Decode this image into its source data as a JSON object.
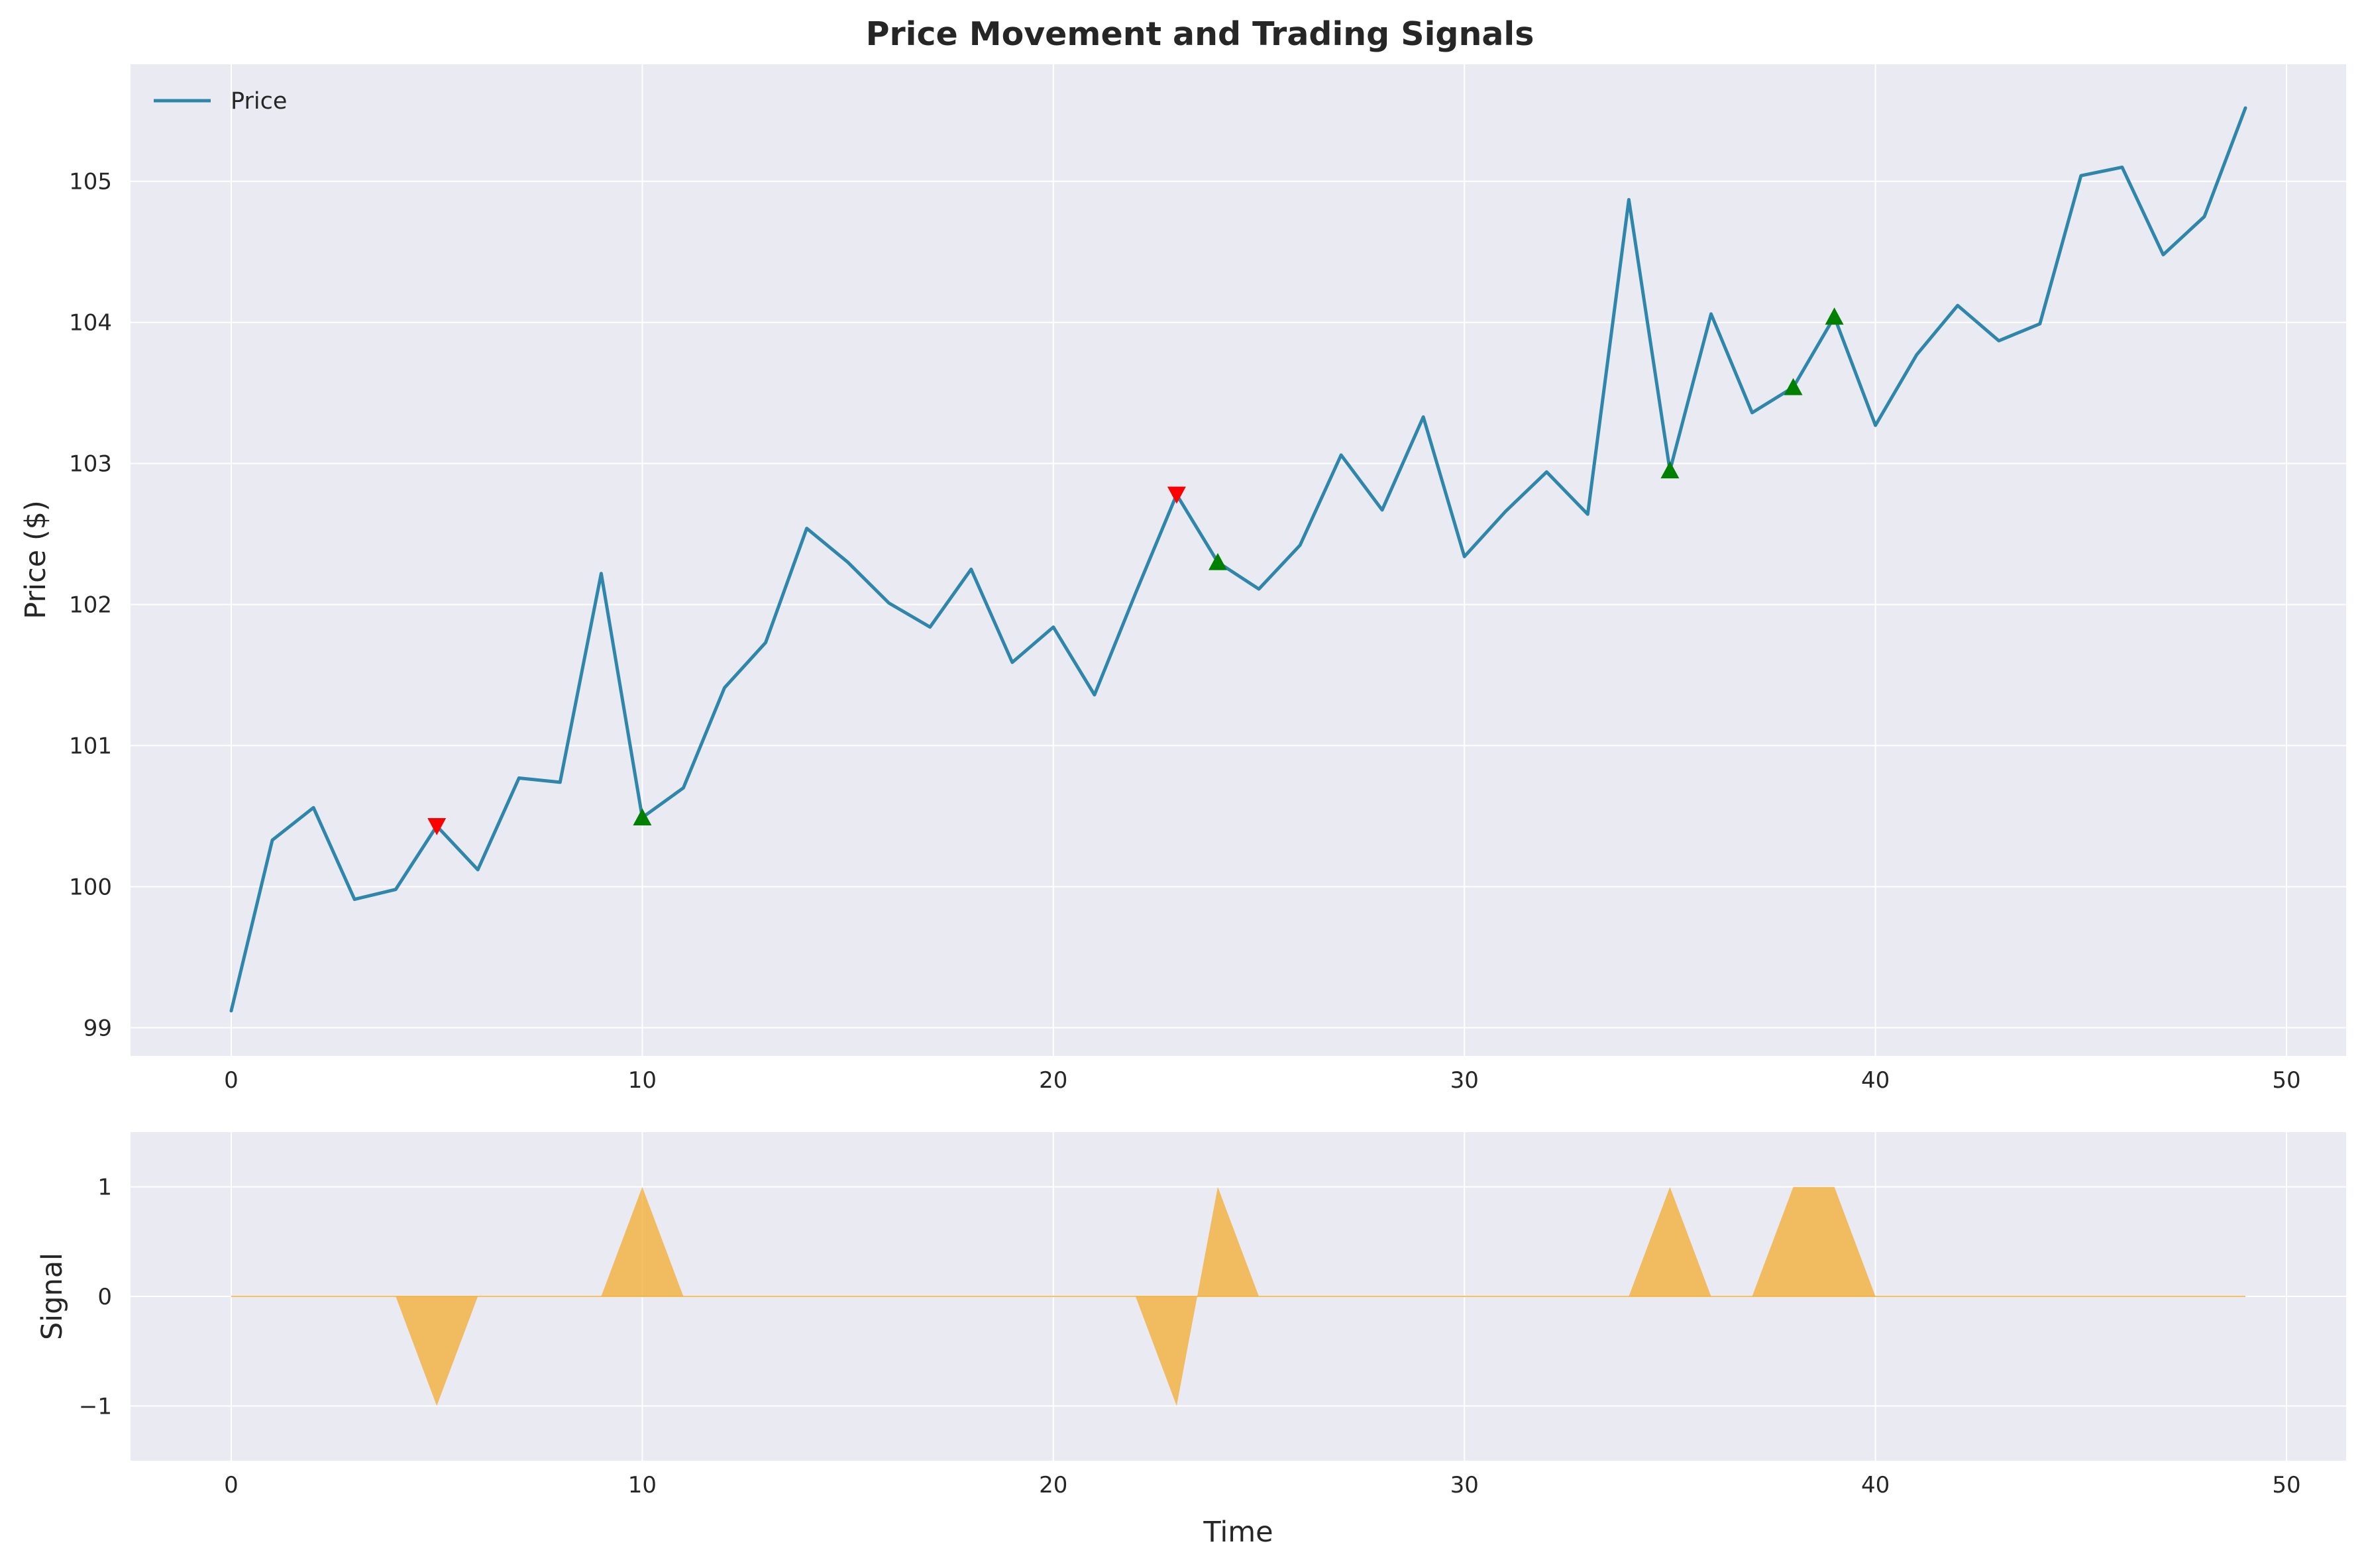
{
  "chart_data": [
    {
      "type": "line",
      "title": "Price Movement and Trading Signals",
      "xlabel": "",
      "ylabel": "Price ($)",
      "xlim": [
        -2.45,
        51.45
      ],
      "ylim": [
        98.8,
        105.83
      ],
      "xticks": [
        0,
        10,
        20,
        30,
        40,
        50
      ],
      "yticks": [
        99,
        100,
        101,
        102,
        103,
        104,
        105
      ],
      "grid": true,
      "legend": "top-left",
      "series": [
        {
          "name": "Price",
          "color": "#2e86ab",
          "x": [
            0,
            1,
            2,
            3,
            4,
            5,
            6,
            7,
            8,
            9,
            10,
            11,
            12,
            13,
            14,
            15,
            16,
            17,
            18,
            19,
            20,
            21,
            22,
            23,
            24,
            25,
            26,
            27,
            28,
            29,
            30,
            31,
            32,
            33,
            34,
            35,
            36,
            37,
            38,
            39,
            40,
            41,
            42,
            43,
            44,
            45,
            46,
            47,
            48,
            49
          ],
          "values": [
            99.12,
            100.33,
            100.56,
            99.91,
            99.98,
            100.43,
            100.12,
            100.77,
            100.74,
            102.22,
            100.49,
            100.7,
            101.41,
            101.73,
            102.54,
            102.3,
            102.01,
            101.84,
            102.25,
            101.59,
            101.84,
            101.36,
            102.08,
            102.78,
            102.3,
            102.11,
            102.42,
            103.06,
            102.67,
            103.33,
            102.34,
            102.66,
            102.94,
            102.64,
            104.87,
            102.95,
            104.06,
            103.36,
            103.54,
            104.04,
            103.27,
            103.77,
            104.12,
            103.87,
            103.99,
            105.04,
            105.1,
            104.48,
            104.75,
            105.52
          ]
        }
      ],
      "markers": {
        "buy": {
          "symbol": "triangle-up",
          "color": "#008000",
          "x": [
            10,
            24,
            35,
            38,
            39
          ],
          "y": [
            100.49,
            102.3,
            102.95,
            103.54,
            104.04
          ]
        },
        "sell": {
          "symbol": "triangle-down",
          "color": "#ff0000",
          "x": [
            5,
            23
          ],
          "y": [
            100.43,
            102.78
          ]
        }
      }
    },
    {
      "type": "area",
      "title": "",
      "xlabel": "Time",
      "ylabel": "Signal",
      "xlim": [
        -2.45,
        51.45
      ],
      "ylim": [
        -1.5,
        1.5
      ],
      "xticks": [
        0,
        10,
        20,
        30,
        40,
        50
      ],
      "yticks": [
        -1,
        0,
        1
      ],
      "ytick_labels": [
        "−1",
        "0",
        "1"
      ],
      "grid": true,
      "series": [
        {
          "color": "#f4a622",
          "x": [
            0,
            1,
            2,
            3,
            4,
            5,
            6,
            7,
            8,
            9,
            10,
            11,
            12,
            13,
            14,
            15,
            16,
            17,
            18,
            19,
            20,
            21,
            22,
            23,
            24,
            25,
            26,
            27,
            28,
            29,
            30,
            31,
            32,
            33,
            34,
            35,
            36,
            37,
            38,
            39,
            40,
            41,
            42,
            43,
            44,
            45,
            46,
            47,
            48,
            49
          ],
          "values": [
            0,
            0,
            0,
            0,
            0,
            -1,
            0,
            0,
            0,
            0,
            1,
            0,
            0,
            0,
            0,
            0,
            0,
            0,
            0,
            0,
            0,
            0,
            0,
            -1,
            1,
            0,
            0,
            0,
            0,
            0,
            0,
            0,
            0,
            0,
            0,
            1,
            0,
            0,
            1,
            1,
            0,
            0,
            0,
            0,
            0,
            0,
            0,
            0,
            0,
            0
          ]
        }
      ]
    }
  ]
}
